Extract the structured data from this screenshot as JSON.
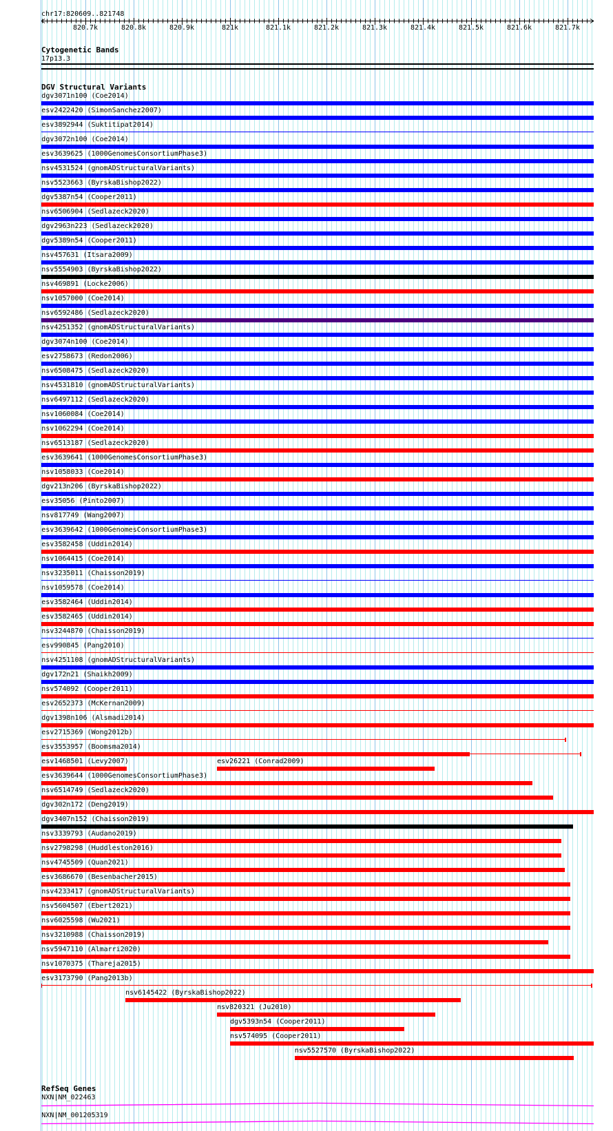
{
  "ruler": {
    "location": "chr17:820609..821748",
    "start_bp": 820609,
    "end_bp": 821748,
    "tick_labels": [
      {
        "bp": 820700,
        "label": "820.7k"
      },
      {
        "bp": 820800,
        "label": "820.8k"
      },
      {
        "bp": 820900,
        "label": "820.9k"
      },
      {
        "bp": 821000,
        "label": "821k"
      },
      {
        "bp": 821100,
        "label": "821.1k"
      },
      {
        "bp": 821200,
        "label": "821.2k"
      },
      {
        "bp": 821300,
        "label": "821.3k"
      },
      {
        "bp": 821400,
        "label": "821.4k"
      },
      {
        "bp": 821500,
        "label": "821.5k"
      },
      {
        "bp": 821600,
        "label": "821.6k"
      },
      {
        "bp": 821700,
        "label": "821.7k"
      }
    ]
  },
  "cyto": {
    "title": "Cytogenetic Bands",
    "band": "17p13.3"
  },
  "colors": {
    "blue": "#0000ff",
    "red": "#ff0000",
    "black": "#000000",
    "purple": "#4b0080",
    "magenta": "#ff00ff"
  },
  "dgv": {
    "title": "DGV Structural Variants",
    "rows": [
      [
        {
          "label": "dgv3071n100 (Coe2014)",
          "color": "blue",
          "style": "thick",
          "start": 820609,
          "end": 821755
        }
      ],
      [
        {
          "label": "esv2422420 (SimonSanchez2007)",
          "color": "blue",
          "style": "thick",
          "start": 820609,
          "end": 821755
        }
      ],
      [
        {
          "label": "esv3892944 (Suktitipat2014)",
          "color": "blue",
          "style": "thin",
          "start": 820609,
          "end": 821755
        }
      ],
      [
        {
          "label": "dgv3072n100 (Coe2014)",
          "color": "blue",
          "style": "thick",
          "start": 820609,
          "end": 821755
        }
      ],
      [
        {
          "label": "esv3639625 (1000GenomesConsortiumPhase3)",
          "color": "blue",
          "style": "thick",
          "start": 820609,
          "end": 821755
        }
      ],
      [
        {
          "label": "nsv4531524 (gnomADStructuralVariants)",
          "color": "blue",
          "style": "thick",
          "start": 820609,
          "end": 821755
        }
      ],
      [
        {
          "label": "nsv5523663 (ByrskaBishop2022)",
          "color": "blue",
          "style": "thick",
          "start": 820609,
          "end": 821755
        }
      ],
      [
        {
          "label": "dgv5387n54 (Cooper2011)",
          "color": "red",
          "style": "thick",
          "start": 820609,
          "end": 821755
        }
      ],
      [
        {
          "label": "nsv6506904 (Sedlazeck2020)",
          "color": "blue",
          "style": "thick",
          "start": 820609,
          "end": 821755
        }
      ],
      [
        {
          "label": "dgv2963n223 (Sedlazeck2020)",
          "color": "blue",
          "style": "thick",
          "start": 820609,
          "end": 821755
        }
      ],
      [
        {
          "label": "dgv5389n54 (Cooper2011)",
          "color": "blue",
          "style": "thick",
          "start": 820609,
          "end": 821755
        }
      ],
      [
        {
          "label": "nsv457631 (Itsara2009)",
          "color": "blue",
          "style": "thick",
          "start": 820609,
          "end": 821755
        }
      ],
      [
        {
          "label": "nsv5554903 (ByrskaBishop2022)",
          "color": "black",
          "style": "thick",
          "start": 820609,
          "end": 821755
        }
      ],
      [
        {
          "label": "nsv469891 (Locke2006)",
          "color": "red",
          "style": "thick",
          "start": 820609,
          "end": 821755
        }
      ],
      [
        {
          "label": "nsv1057000 (Coe2014)",
          "color": "blue",
          "style": "thick",
          "start": 820609,
          "end": 821755
        }
      ],
      [
        {
          "label": "nsv6592486 (Sedlazeck2020)",
          "color": "purple",
          "style": "thick",
          "start": 820609,
          "end": 821755
        }
      ],
      [
        {
          "label": "nsv4251352 (gnomADStructuralVariants)",
          "color": "blue",
          "style": "thick",
          "start": 820609,
          "end": 821755
        }
      ],
      [
        {
          "label": "dgv3074n100 (Coe2014)",
          "color": "blue",
          "style": "thick",
          "start": 820609,
          "end": 821755
        }
      ],
      [
        {
          "label": "esv2758673 (Redon2006)",
          "color": "blue",
          "style": "thick",
          "start": 820609,
          "end": 821755
        }
      ],
      [
        {
          "label": "nsv6508475 (Sedlazeck2020)",
          "color": "blue",
          "style": "thick",
          "start": 820609,
          "end": 821755
        }
      ],
      [
        {
          "label": "nsv4531810 (gnomADStructuralVariants)",
          "color": "blue",
          "style": "thick",
          "start": 820609,
          "end": 821755
        }
      ],
      [
        {
          "label": "nsv6497112 (Sedlazeck2020)",
          "color": "blue",
          "style": "thick",
          "start": 820609,
          "end": 821755
        }
      ],
      [
        {
          "label": "nsv1060084 (Coe2014)",
          "color": "blue",
          "style": "thick",
          "start": 820609,
          "end": 821755
        }
      ],
      [
        {
          "label": "nsv1062294 (Coe2014)",
          "color": "red",
          "style": "thick",
          "start": 820609,
          "end": 821755
        }
      ],
      [
        {
          "label": "nsv6513187 (Sedlazeck2020)",
          "color": "red",
          "style": "thick",
          "start": 820609,
          "end": 821755
        }
      ],
      [
        {
          "label": "esv3639641 (1000GenomesConsortiumPhase3)",
          "color": "blue",
          "style": "thick",
          "start": 820609,
          "end": 821755
        }
      ],
      [
        {
          "label": "nsv1058033 (Coe2014)",
          "color": "red",
          "style": "thick",
          "start": 820609,
          "end": 821755
        }
      ],
      [
        {
          "label": "dgv213n206 (ByrskaBishop2022)",
          "color": "blue",
          "style": "thick",
          "start": 820609,
          "end": 821755
        }
      ],
      [
        {
          "label": "esv35056 (Pinto2007)",
          "color": "blue",
          "style": "thick",
          "start": 820609,
          "end": 821755
        }
      ],
      [
        {
          "label": "nsv817749 (Wang2007)",
          "color": "blue",
          "style": "thick",
          "start": 820609,
          "end": 821755
        }
      ],
      [
        {
          "label": "esv3639642 (1000GenomesConsortiumPhase3)",
          "color": "blue",
          "style": "thick",
          "start": 820609,
          "end": 821755
        }
      ],
      [
        {
          "label": "esv3582458 (Uddin2014)",
          "color": "red",
          "style": "thick",
          "start": 820609,
          "end": 821755
        }
      ],
      [
        {
          "label": "nsv1064415 (Coe2014)",
          "color": "blue",
          "style": "thick",
          "start": 820609,
          "end": 821755
        }
      ],
      [
        {
          "label": "nsv3235011 (Chaisson2019)",
          "color": "blue",
          "style": "thin",
          "start": 820609,
          "end": 821755
        }
      ],
      [
        {
          "label": "nsv1059578 (Coe2014)",
          "color": "blue",
          "style": "thick",
          "start": 820609,
          "end": 821755
        }
      ],
      [
        {
          "label": "esv3582464 (Uddin2014)",
          "color": "red",
          "style": "thick",
          "start": 820609,
          "end": 821755
        }
      ],
      [
        {
          "label": "esv3582465 (Uddin2014)",
          "color": "red",
          "style": "thick",
          "start": 820609,
          "end": 821755
        }
      ],
      [
        {
          "label": "nsv3244870 (Chaisson2019)",
          "color": "blue",
          "style": "thin",
          "start": 820609,
          "end": 821755
        }
      ],
      [
        {
          "label": "esv990845 (Pang2010)",
          "color": "red",
          "style": "thin",
          "start": 820609,
          "end": 821755
        }
      ],
      [
        {
          "label": "nsv4251108 (gnomADStructuralVariants)",
          "color": "blue",
          "style": "thick",
          "start": 820609,
          "end": 821755
        }
      ],
      [
        {
          "label": "dgv172n21 (Shaikh2009)",
          "color": "blue",
          "style": "thick",
          "start": 820609,
          "end": 821755
        }
      ],
      [
        {
          "label": "nsv574092 (Cooper2011)",
          "color": "red",
          "style": "thick",
          "start": 820609,
          "end": 821755
        }
      ],
      [
        {
          "label": "esv2652373 (McKernan2009)",
          "color": "red",
          "style": "thin",
          "start": 820609,
          "end": 821755
        }
      ],
      [
        {
          "label": "dgv1398n106 (Alsmadi2014)",
          "color": "red",
          "style": "thick",
          "start": 820609,
          "end": 821755
        }
      ],
      [
        {
          "label": "esv2715369 (Wong2012b)",
          "color": "red",
          "style": "thin",
          "start": 820609,
          "end": 821697,
          "end_tick": true
        }
      ],
      [
        {
          "label": "esv3553957 (Boomsma2014)",
          "color": "red",
          "style": "thick",
          "start": 820609,
          "thick_end": 821497,
          "end": 821729,
          "end_tick": true
        }
      ],
      [
        {
          "label": "esv1468501 (Levy2007)",
          "color": "red",
          "style": "thick",
          "start": 820609,
          "end": 820786
        },
        {
          "label": "esv26221 (Conrad2009)",
          "color": "red",
          "style": "thick",
          "start": 820973,
          "end": 821424
        }
      ],
      [
        {
          "label": "esv3639644 (1000GenomesConsortiumPhase3)",
          "color": "red",
          "style": "thick",
          "start": 820609,
          "end": 821627
        }
      ],
      [
        {
          "label": "nsv6514749 (Sedlazeck2020)",
          "color": "red",
          "style": "thick",
          "start": 820609,
          "end": 821670
        }
      ],
      [
        {
          "label": "dgv302n172 (Deng2019)",
          "color": "red",
          "style": "thick",
          "start": 820609,
          "end": 821755
        }
      ],
      [
        {
          "label": "dgv3407n152 (Chaisson2019)",
          "color": "black",
          "style": "thick",
          "start": 820609,
          "end": 821711
        }
      ],
      [
        {
          "label": "nsv3339793 (Audano2019)",
          "color": "red",
          "style": "thick",
          "start": 820609,
          "end": 821687
        }
      ],
      [
        {
          "label": "nsv2798298 (Huddleston2016)",
          "color": "red",
          "style": "thick",
          "start": 820609,
          "end": 821687
        }
      ],
      [
        {
          "label": "nsv4745509 (Quan2021)",
          "color": "red",
          "style": "thick",
          "start": 820609,
          "end": 821694
        }
      ],
      [
        {
          "label": "esv3686670 (Besenbacher2015)",
          "color": "red",
          "style": "thick",
          "start": 820609,
          "end": 821706
        }
      ],
      [
        {
          "label": "nsv4233417 (gnomADStructuralVariants)",
          "color": "red",
          "style": "thick",
          "start": 820609,
          "end": 821706
        }
      ],
      [
        {
          "label": "nsv5604507 (Ebert2021)",
          "color": "red",
          "style": "thick",
          "start": 820609,
          "end": 821706
        }
      ],
      [
        {
          "label": "nsv6025598 (Wu2021)",
          "color": "red",
          "style": "thick",
          "start": 820609,
          "end": 821706
        }
      ],
      [
        {
          "label": "nsv3210988 (Chaisson2019)",
          "color": "red",
          "style": "thick",
          "start": 820609,
          "end": 821660
        }
      ],
      [
        {
          "label": "nsv5947110 (Almarri2020)",
          "color": "red",
          "style": "thick",
          "start": 820609,
          "end": 821706
        }
      ],
      [
        {
          "label": "nsv1070375 (Thareja2015)",
          "color": "red",
          "style": "thick",
          "start": 820609,
          "end": 821755
        }
      ],
      [
        {
          "label": "esv3173790 (Pang2013b)",
          "color": "red",
          "style": "thin",
          "start": 820609,
          "end": 821752,
          "start_tick": true,
          "end_tick": true
        }
      ],
      [
        {
          "label": "nsv6145422 (ByrskaBishop2022)",
          "color": "red",
          "style": "thick",
          "start": 820783,
          "end": 821479
        }
      ],
      [
        {
          "label": "nsv820321 (Ju2010)",
          "color": "red",
          "style": "thick",
          "start": 820973,
          "end": 821426
        }
      ],
      [
        {
          "label": "dgv5393n54 (Cooper2011)",
          "color": "red",
          "style": "thick",
          "start": 821000,
          "end": 821361
        }
      ],
      [
        {
          "label": "nsv574095 (Cooper2011)",
          "color": "red",
          "style": "thick",
          "start": 821000,
          "end": 821755
        }
      ],
      [
        {
          "label": "nsv5527570 (ByrskaBishop2022)",
          "color": "red",
          "style": "thick",
          "start": 821134,
          "end": 821713
        }
      ]
    ]
  },
  "refseq": {
    "title": "RefSeq Genes",
    "genes": [
      {
        "label": "NXN|NM_022463",
        "start": 820609,
        "end": 821755,
        "color": "magenta"
      },
      {
        "label": "NXN|NM_001205319",
        "start": 820609,
        "end": 821755,
        "color": "magenta"
      }
    ]
  }
}
